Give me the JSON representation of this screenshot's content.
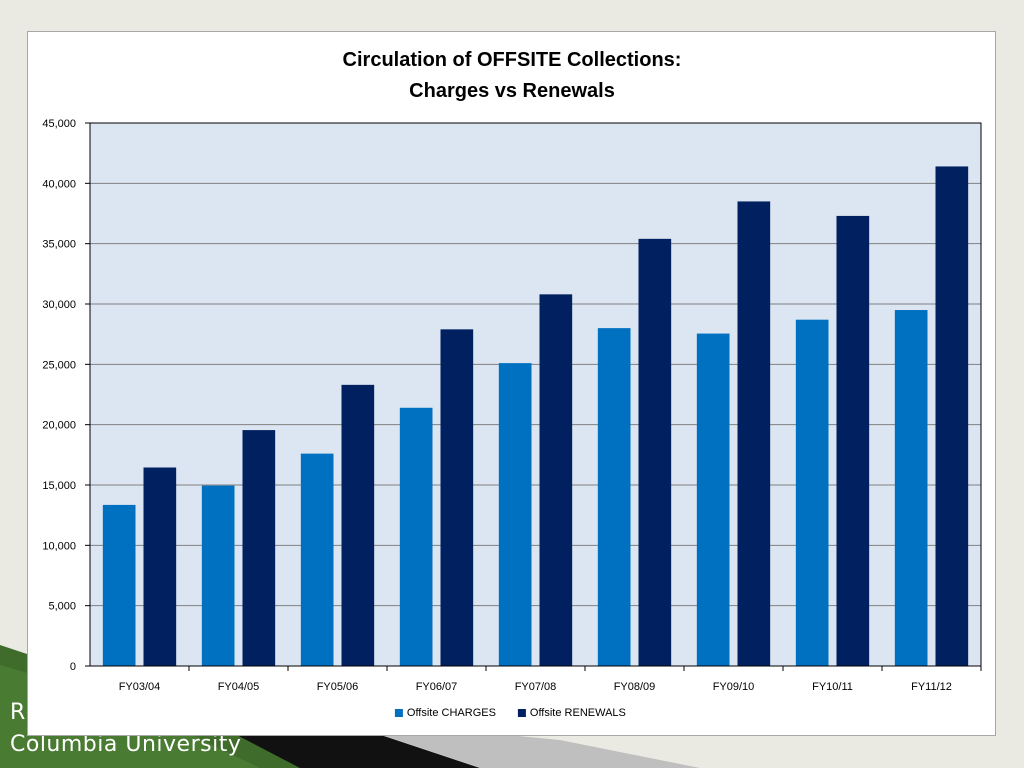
{
  "footer": {
    "line1": "R",
    "line2": "Columbia University"
  },
  "colors": {
    "charges": "#0070c0",
    "renewals": "#002060",
    "plot_bg": "#dce6f2",
    "grid": "#808080",
    "footer_green": "#3f6b2b"
  },
  "chart_data": {
    "type": "bar",
    "title": "Circulation of OFFSITE Collections:",
    "subtitle": "Charges vs Renewals",
    "categories": [
      "FY03/04",
      "FY04/05",
      "FY05/06",
      "FY06/07",
      "FY07/08",
      "FY08/09",
      "FY09/10",
      "FY10/11",
      "FY11/12"
    ],
    "series": [
      {
        "name": "Offsite CHARGES",
        "values": [
          13350,
          14950,
          17600,
          21400,
          25100,
          28000,
          27550,
          28700,
          29500
        ]
      },
      {
        "name": "Offsite RENEWALS",
        "values": [
          16450,
          19550,
          23300,
          27900,
          30800,
          35400,
          38500,
          37300,
          41400
        ]
      }
    ],
    "ylim": [
      0,
      45000
    ],
    "yticks": [
      "0",
      "5,000",
      "10,000",
      "15,000",
      "20,000",
      "25,000",
      "30,000",
      "35,000",
      "40,000",
      "45,000"
    ],
    "grid": true,
    "legend_position": "bottom"
  }
}
